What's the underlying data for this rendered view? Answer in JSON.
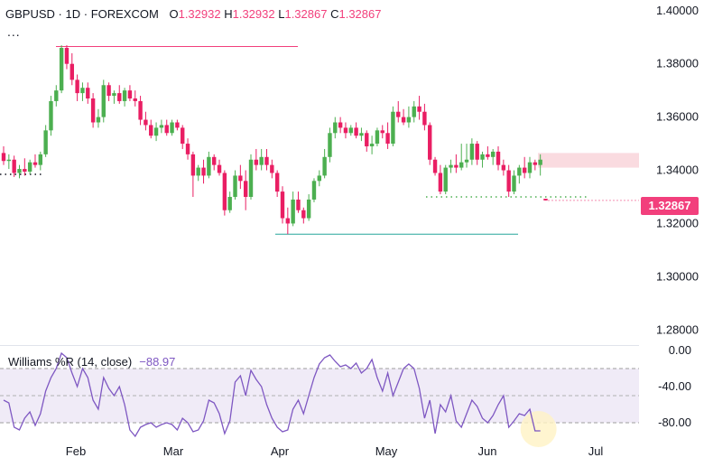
{
  "header": {
    "symbol": "GBPUSD",
    "sep": "·",
    "interval": "1D",
    "exchange": "FOREXCOM",
    "o_label": "O",
    "o_value": "1.32932",
    "h_label": "H",
    "h_value": "1.32932",
    "l_label": "L",
    "l_value": "1.32867",
    "c_label": "C",
    "c_value": "1.32867",
    "more": "..."
  },
  "price_axis": {
    "ticks": [
      "1.40000",
      "1.38000",
      "1.36000",
      "1.34000",
      "1.32000",
      "1.30000",
      "1.28000"
    ],
    "last_price": "1.32867"
  },
  "indicator": {
    "label": "Williams %R (14, close)",
    "value": "−88.97",
    "ticks": [
      "0.00",
      "-40.00",
      "-80.00"
    ]
  },
  "time_axis": {
    "ticks": [
      "Feb",
      "Mar",
      "Apr",
      "May",
      "Jun",
      "Jul"
    ]
  },
  "colors": {
    "up": "#4caf50",
    "down": "#e91e63",
    "wr_line": "#7e57c2",
    "wr_band": "#ede7f6",
    "high_line": "#f23f7c",
    "low_line": "#26a69a",
    "zone": "#f8c8d0"
  },
  "chart_data": [
    {
      "type": "candlestick",
      "symbol": "GBPUSD",
      "interval": "1D",
      "ylim": [
        1.275,
        1.404
      ],
      "levels": {
        "swing_high": 1.3865,
        "swing_low": 1.316,
        "support_dotted": 1.33,
        "last": 1.32867
      },
      "resistance_zone": [
        1.341,
        1.3465
      ],
      "grid": false,
      "candles": [
        [
          1.3465,
          1.349,
          1.342,
          1.3435
        ],
        [
          1.3435,
          1.346,
          1.3405,
          1.344
        ],
        [
          1.344,
          1.3455,
          1.3375,
          1.339
        ],
        [
          1.339,
          1.342,
          1.337,
          1.3405
        ],
        [
          1.3405,
          1.3445,
          1.338,
          1.3395
        ],
        [
          1.3395,
          1.344,
          1.3385,
          1.343
        ],
        [
          1.343,
          1.346,
          1.341,
          1.342
        ],
        [
          1.342,
          1.347,
          1.34,
          1.346
        ],
        [
          1.346,
          1.357,
          1.345,
          1.355
        ],
        [
          1.355,
          1.368,
          1.353,
          1.366
        ],
        [
          1.366,
          1.372,
          1.364,
          1.37
        ],
        [
          1.37,
          1.387,
          1.369,
          1.386
        ],
        [
          1.386,
          1.387,
          1.378,
          1.38
        ],
        [
          1.38,
          1.384,
          1.372,
          1.374
        ],
        [
          1.374,
          1.376,
          1.366,
          1.369
        ],
        [
          1.369,
          1.373,
          1.366,
          1.371
        ],
        [
          1.371,
          1.373,
          1.365,
          1.367
        ],
        [
          1.367,
          1.369,
          1.356,
          1.358
        ],
        [
          1.358,
          1.363,
          1.356,
          1.36
        ],
        [
          1.36,
          1.374,
          1.358,
          1.372
        ],
        [
          1.372,
          1.373,
          1.366,
          1.368
        ],
        [
          1.368,
          1.37,
          1.365,
          1.369
        ],
        [
          1.369,
          1.372,
          1.365,
          1.366
        ],
        [
          1.366,
          1.371,
          1.364,
          1.37
        ],
        [
          1.37,
          1.372,
          1.366,
          1.367
        ],
        [
          1.367,
          1.37,
          1.364,
          1.366
        ],
        [
          1.366,
          1.368,
          1.357,
          1.359
        ],
        [
          1.359,
          1.362,
          1.355,
          1.357
        ],
        [
          1.357,
          1.359,
          1.352,
          1.353
        ],
        [
          1.353,
          1.358,
          1.351,
          1.356
        ],
        [
          1.356,
          1.359,
          1.354,
          1.357
        ],
        [
          1.357,
          1.359,
          1.353,
          1.354
        ],
        [
          1.354,
          1.359,
          1.353,
          1.358
        ],
        [
          1.358,
          1.359,
          1.355,
          1.356
        ],
        [
          1.356,
          1.357,
          1.348,
          1.35
        ],
        [
          1.35,
          1.352,
          1.344,
          1.346
        ],
        [
          1.346,
          1.347,
          1.33,
          1.338
        ],
        [
          1.338,
          1.342,
          1.336,
          1.341
        ],
        [
          1.341,
          1.344,
          1.335,
          1.338
        ],
        [
          1.338,
          1.347,
          1.337,
          1.345
        ],
        [
          1.345,
          1.346,
          1.34,
          1.342
        ],
        [
          1.342,
          1.344,
          1.338,
          1.339
        ],
        [
          1.339,
          1.34,
          1.323,
          1.325
        ],
        [
          1.325,
          1.332,
          1.324,
          1.33
        ],
        [
          1.33,
          1.34,
          1.329,
          1.338
        ],
        [
          1.338,
          1.342,
          1.333,
          1.336
        ],
        [
          1.336,
          1.34,
          1.325,
          1.33
        ],
        [
          1.33,
          1.346,
          1.329,
          1.344
        ],
        [
          1.344,
          1.348,
          1.34,
          1.342
        ],
        [
          1.342,
          1.348,
          1.34,
          1.345
        ],
        [
          1.345,
          1.348,
          1.34,
          1.342
        ],
        [
          1.342,
          1.344,
          1.337,
          1.339
        ],
        [
          1.339,
          1.34,
          1.33,
          1.332
        ],
        [
          1.332,
          1.334,
          1.32,
          1.322
        ],
        [
          1.322,
          1.326,
          1.316,
          1.32
        ],
        [
          1.32,
          1.332,
          1.319,
          1.329
        ],
        [
          1.329,
          1.332,
          1.324,
          1.325
        ],
        [
          1.325,
          1.326,
          1.32,
          1.322
        ],
        [
          1.322,
          1.331,
          1.321,
          1.329
        ],
        [
          1.329,
          1.337,
          1.328,
          1.336
        ],
        [
          1.336,
          1.34,
          1.334,
          1.338
        ],
        [
          1.338,
          1.348,
          1.337,
          1.345
        ],
        [
          1.345,
          1.356,
          1.343,
          1.354
        ],
        [
          1.354,
          1.36,
          1.352,
          1.358
        ],
        [
          1.358,
          1.36,
          1.354,
          1.356
        ],
        [
          1.356,
          1.358,
          1.352,
          1.354
        ],
        [
          1.354,
          1.357,
          1.353,
          1.356
        ],
        [
          1.356,
          1.358,
          1.352,
          1.353
        ],
        [
          1.353,
          1.356,
          1.351,
          1.354
        ],
        [
          1.354,
          1.355,
          1.347,
          1.349
        ],
        [
          1.349,
          1.353,
          1.346,
          1.35
        ],
        [
          1.35,
          1.356,
          1.349,
          1.355
        ],
        [
          1.355,
          1.357,
          1.352,
          1.354
        ],
        [
          1.354,
          1.358,
          1.348,
          1.35
        ],
        [
          1.35,
          1.364,
          1.349,
          1.362
        ],
        [
          1.362,
          1.366,
          1.358,
          1.36
        ],
        [
          1.36,
          1.363,
          1.357,
          1.358
        ],
        [
          1.358,
          1.364,
          1.356,
          1.36
        ],
        [
          1.36,
          1.366,
          1.358,
          1.364
        ],
        [
          1.364,
          1.368,
          1.359,
          1.362
        ],
        [
          1.362,
          1.365,
          1.355,
          1.357
        ],
        [
          1.357,
          1.358,
          1.342,
          1.344
        ],
        [
          1.344,
          1.345,
          1.338,
          1.339
        ],
        [
          1.339,
          1.342,
          1.331,
          1.332
        ],
        [
          1.332,
          1.342,
          1.331,
          1.341
        ],
        [
          1.341,
          1.344,
          1.339,
          1.342
        ],
        [
          1.342,
          1.346,
          1.339,
          1.341
        ],
        [
          1.341,
          1.35,
          1.34,
          1.343
        ],
        [
          1.343,
          1.35,
          1.341,
          1.344
        ],
        [
          1.344,
          1.352,
          1.342,
          1.35
        ],
        [
          1.35,
          1.351,
          1.342,
          1.344
        ],
        [
          1.344,
          1.347,
          1.341,
          1.346
        ],
        [
          1.346,
          1.349,
          1.344,
          1.345
        ],
        [
          1.345,
          1.348,
          1.342,
          1.347
        ],
        [
          1.347,
          1.349,
          1.34,
          1.342
        ],
        [
          1.342,
          1.344,
          1.338,
          1.34
        ],
        [
          1.34,
          1.342,
          1.33,
          1.332
        ],
        [
          1.332,
          1.34,
          1.331,
          1.338
        ],
        [
          1.338,
          1.342,
          1.335,
          1.341
        ],
        [
          1.341,
          1.345,
          1.337,
          1.339
        ],
        [
          1.339,
          1.345,
          1.337,
          1.343
        ],
        [
          1.343,
          1.344,
          1.34,
          1.342
        ],
        [
          1.342,
          1.346,
          1.338,
          1.344
        ],
        [
          1.32932,
          1.32932,
          1.32867,
          1.32867
        ]
      ]
    },
    {
      "type": "line",
      "title": "Williams %R (14, close)",
      "ylim": [
        -100,
        0
      ],
      "bands": [
        -20,
        -80
      ],
      "mid": -50,
      "last": -88.97,
      "series": [
        {
          "name": "Williams %R (14, close)",
          "values": [
            -55,
            -58,
            -85,
            -88,
            -75,
            -68,
            -83,
            -70,
            -45,
            -30,
            -20,
            -3,
            -8,
            -25,
            -40,
            -20,
            -30,
            -55,
            -65,
            -30,
            -42,
            -50,
            -40,
            -60,
            -88,
            -95,
            -85,
            -82,
            -80,
            -85,
            -82,
            -80,
            -82,
            -88,
            -75,
            -80,
            -90,
            -88,
            -78,
            -55,
            -58,
            -70,
            -92,
            -78,
            -35,
            -28,
            -50,
            -22,
            -32,
            -40,
            -60,
            -75,
            -85,
            -90,
            -88,
            -65,
            -55,
            -70,
            -50,
            -30,
            -15,
            -8,
            -5,
            -12,
            -18,
            -16,
            -20,
            -14,
            -25,
            -20,
            -10,
            -30,
            -45,
            -25,
            -50,
            -35,
            -20,
            -15,
            -20,
            -42,
            -75,
            -55,
            -92,
            -60,
            -68,
            -50,
            -78,
            -85,
            -70,
            -55,
            -62,
            -75,
            -80,
            -72,
            -60,
            -50,
            -85,
            -78,
            -70,
            -72,
            -65,
            -89,
            -88.97
          ]
        }
      ]
    }
  ]
}
